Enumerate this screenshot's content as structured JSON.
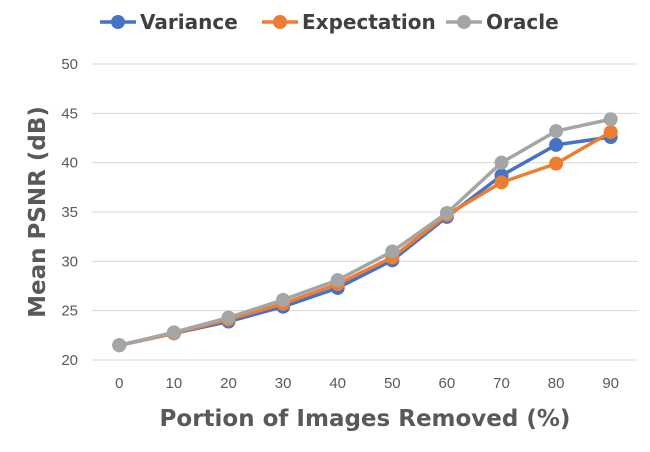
{
  "chart_data": {
    "type": "line",
    "xlabel": "Portion of Images Removed (%)",
    "ylabel": "Mean PSNR (dB)",
    "x": [
      0,
      10,
      20,
      30,
      40,
      50,
      60,
      70,
      80,
      90
    ],
    "ylim": [
      20,
      50
    ],
    "yticks": [
      20,
      25,
      30,
      35,
      40,
      45,
      50
    ],
    "grid": true,
    "legend_position": "top",
    "series": [
      {
        "name": "Variance",
        "color": "#4472C4",
        "values": [
          21.5,
          22.7,
          23.9,
          25.4,
          27.3,
          30.1,
          34.5,
          38.7,
          41.8,
          42.6
        ]
      },
      {
        "name": "Expectation",
        "color": "#ED7D31",
        "values": [
          21.5,
          22.7,
          24.1,
          25.7,
          27.7,
          30.4,
          34.7,
          38.0,
          39.9,
          43.1
        ]
      },
      {
        "name": "Oracle",
        "color": "#A5A5A5",
        "values": [
          21.5,
          22.8,
          24.3,
          26.1,
          28.1,
          31.0,
          34.9,
          40.0,
          43.2,
          44.4
        ]
      }
    ]
  }
}
